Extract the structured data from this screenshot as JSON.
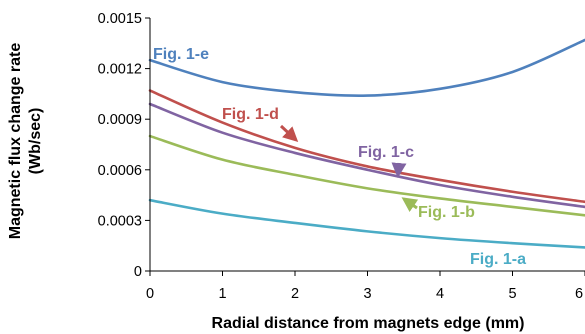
{
  "chart_data": {
    "type": "line",
    "xlabel": "Radial distance from magnets edge (mm)",
    "ylabel": [
      "Magnetic flux change rate",
      "(Wb/sec)"
    ],
    "xlim": [
      0,
      6
    ],
    "ylim": [
      0,
      0.0015
    ],
    "x_ticks": [
      "0",
      "1",
      "2",
      "3",
      "4",
      "5",
      "6"
    ],
    "y_ticks": [
      "0",
      "0.0003",
      "0.0006",
      "0.0009",
      "0.0012",
      "0.0015"
    ],
    "grid": false,
    "series": [
      {
        "name": "Fig. 1-a",
        "color": "#4bacc6",
        "x": [
          0,
          1,
          2,
          3,
          4,
          5,
          6
        ],
        "y": [
          0.00042,
          0.00034,
          0.000285,
          0.000235,
          0.000195,
          0.000165,
          0.00014
        ]
      },
      {
        "name": "Fig. 1-b",
        "color": "#9bbb59",
        "x": [
          0,
          1,
          2,
          3,
          4,
          5,
          6
        ],
        "y": [
          0.0008,
          0.00066,
          0.00057,
          0.00049,
          0.00043,
          0.00038,
          0.00033
        ]
      },
      {
        "name": "Fig. 1-c",
        "color": "#8064a2",
        "x": [
          0,
          1,
          2,
          3,
          4,
          5,
          6
        ],
        "y": [
          0.00099,
          0.00082,
          0.0007,
          0.0006,
          0.00051,
          0.00044,
          0.00038
        ]
      },
      {
        "name": "Fig. 1-d",
        "color": "#c0504d",
        "x": [
          0,
          1,
          2,
          3,
          4,
          5,
          6
        ],
        "y": [
          0.00107,
          0.00088,
          0.00073,
          0.00062,
          0.00054,
          0.00047,
          0.00041
        ]
      },
      {
        "name": "Fig. 1-e",
        "color": "#4f81bd",
        "x": [
          0,
          1,
          2,
          3,
          4,
          5,
          6
        ],
        "y": [
          0.00125,
          0.00112,
          0.00106,
          0.00104,
          0.00108,
          0.00118,
          0.00137
        ]
      }
    ]
  }
}
